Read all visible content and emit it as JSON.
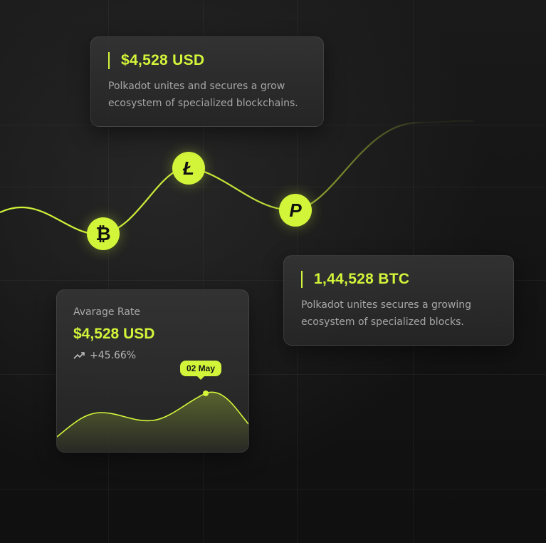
{
  "cards": {
    "top": {
      "amount": "$4,528 USD",
      "description": "Polkadot unites and secures a grow ecosystem of specialized blockchains."
    },
    "right": {
      "amount": "1,44,528 BTC",
      "description": "Polkadot unites secures a growing ecosystem of specialized blocks."
    }
  },
  "rate_card": {
    "title": "Avarage Rate",
    "amount": "$4,528 USD",
    "change": "+45.66%",
    "tooltip_date": "02 May",
    "trend_icon": "trend-up-icon"
  },
  "coins": [
    {
      "name": "bitcoin",
      "glyph": "₿",
      "icon": "bitcoin-icon"
    },
    {
      "name": "litecoin",
      "glyph": "Ł",
      "icon": "litecoin-icon"
    },
    {
      "name": "pivx",
      "glyph": "P",
      "icon": "pivx-icon"
    }
  ],
  "colors": {
    "accent": "#d2f53a",
    "background": "#141414",
    "card": "#333333"
  }
}
